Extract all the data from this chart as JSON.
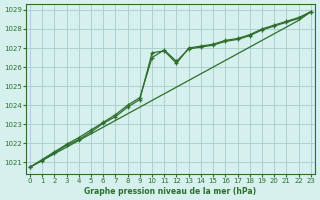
{
  "title": "Graphe pression niveau de la mer (hPa)",
  "background_color": "#d6f0ee",
  "grid_color": "#a8ccca",
  "line_color": "#2d6e2d",
  "x_ticks": [
    0,
    1,
    2,
    3,
    4,
    5,
    6,
    7,
    8,
    9,
    10,
    11,
    12,
    13,
    14,
    15,
    16,
    17,
    18,
    19,
    20,
    21,
    22,
    23
  ],
  "y_ticks": [
    1021,
    1022,
    1023,
    1024,
    1025,
    1026,
    1027,
    1028,
    1029
  ],
  "ylim": [
    1020.4,
    1029.3
  ],
  "xlim": [
    -0.3,
    23.3
  ],
  "series1": [
    1020.75,
    1021.1,
    1021.45,
    1021.8,
    1022.15,
    1022.5,
    1022.85,
    1023.2,
    1023.55,
    1023.9,
    1024.25,
    1024.6,
    1024.95,
    1025.3,
    1025.65,
    1026.0,
    1026.35,
    1026.7,
    1027.05,
    1027.4,
    1027.75,
    1028.1,
    1028.45,
    1028.9
  ],
  "series2": [
    1020.75,
    1021.1,
    1021.5,
    1021.9,
    1022.2,
    1022.6,
    1023.05,
    1023.4,
    1023.9,
    1024.3,
    1026.75,
    1026.85,
    1026.2,
    1027.0,
    1027.1,
    1027.2,
    1027.4,
    1027.5,
    1027.7,
    1028.0,
    1028.2,
    1028.4,
    1028.6,
    1028.9
  ],
  "series3": [
    1020.75,
    1021.15,
    1021.55,
    1021.95,
    1022.3,
    1022.7,
    1023.1,
    1023.5,
    1024.0,
    1024.4,
    1026.5,
    1026.9,
    1026.3,
    1026.95,
    1027.05,
    1027.15,
    1027.35,
    1027.45,
    1027.65,
    1027.95,
    1028.15,
    1028.35,
    1028.55,
    1028.9
  ]
}
